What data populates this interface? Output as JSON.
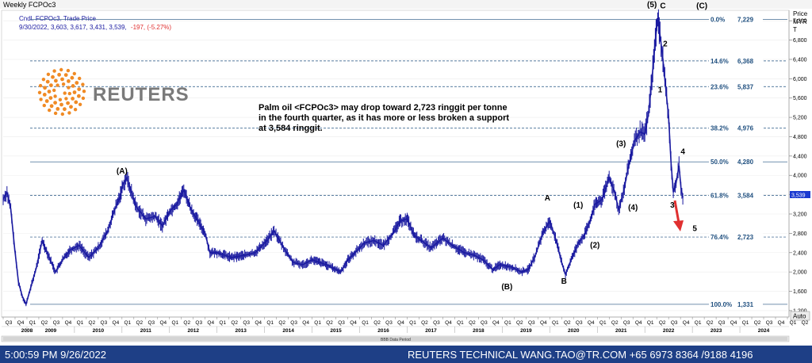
{
  "window": {
    "title": "Weekly FCPOc3",
    "series_label": "Cndl, FCPOc3, Trade Price",
    "ohlc_text": "9/30/2022, 3,603, 3,617, 3,431, 3,539,",
    "change_text": "-197, (-5.27%)"
  },
  "axis": {
    "unit_line1": "Price",
    "unit_line2": "MYR",
    "unit_line3": "T",
    "auto_label": "Auto",
    "data_period_label": "BBB Data Period",
    "last_price_tag": "3,539"
  },
  "logo": {
    "text": "REUTERS"
  },
  "annotation": {
    "lines": [
      "Palm oil <FCPOc3> may drop toward 2,723 ringgit per tonne",
      " in the fourth quarter, as it has more or less broken a support",
      "at 3,584 ringgit."
    ]
  },
  "footer": {
    "timestamp": "5:00:59 PM 9/26/2022",
    "info": "REUTERS TECHNICAL  WANG.TAO@TR.COM  +65 6973 8364 /9188 4196"
  },
  "colors": {
    "candle": "#1a1aa0",
    "fib_line": "#1f4f7f",
    "accent_red": "#e03030",
    "footer_bg": "#1e3f86",
    "last_tag": "#1a3ad0"
  },
  "chart_data": {
    "type": "candlestick",
    "title": "Weekly FCPOc3",
    "ylabel": "Price MYR T",
    "ylim": [
      1100,
      7400
    ],
    "y_ticks": [
      1200,
      1600,
      2000,
      2400,
      2800,
      3200,
      3600,
      4000,
      4400,
      4800,
      5200,
      5600,
      6000,
      6400,
      6800,
      7200
    ],
    "y_tick_labels": [
      "1,200",
      "1,600",
      "2,000",
      "2,400",
      "2,800",
      "3,200",
      "3,600",
      "4,000",
      "4,400",
      "4,800",
      "5,200",
      "5,600",
      "6,000",
      "6,400",
      "6,800",
      "7,200"
    ],
    "x_range": [
      2008.5,
      2025.0
    ],
    "quarter_labels": [
      "Q3",
      "Q4",
      "Q1",
      "Q2",
      "Q3",
      "Q4",
      "Q1",
      "Q2",
      "Q3",
      "Q4",
      "Q1",
      "Q2",
      "Q3",
      "Q4",
      "Q1",
      "Q2",
      "Q3",
      "Q4",
      "Q1",
      "Q2",
      "Q3",
      "Q4",
      "Q1",
      "Q2",
      "Q3",
      "Q4",
      "Q1",
      "Q2",
      "Q3",
      "Q4",
      "Q1",
      "Q2",
      "Q3",
      "Q4",
      "Q1",
      "Q2",
      "Q3",
      "Q4",
      "Q1",
      "Q2",
      "Q3",
      "Q4",
      "Q1",
      "Q2",
      "Q3",
      "Q4",
      "Q1",
      "Q2",
      "Q3",
      "Q4",
      "Q1",
      "Q2",
      "Q3",
      "Q4",
      "Q1",
      "Q2",
      "Q3",
      "Q4",
      "Q1",
      "Q2",
      "Q3",
      "Q4",
      "Q1",
      "Q2",
      "Q3",
      "Q4",
      "Q1",
      "Q2"
    ],
    "years": [
      "2008",
      "2009",
      "2010",
      "2011",
      "2012",
      "2013",
      "2014",
      "2015",
      "2016",
      "2017",
      "2018",
      "2019",
      "2020",
      "2021",
      "2022",
      "2023",
      "2024"
    ],
    "fib_levels": [
      {
        "label": "0.0%",
        "value": 7229,
        "value_label": "7,229"
      },
      {
        "label": "14.6%",
        "value": 6368,
        "value_label": "6,368"
      },
      {
        "label": "23.6%",
        "value": 5837,
        "value_label": "5,837"
      },
      {
        "label": "38.2%",
        "value": 4976,
        "value_label": "4,976"
      },
      {
        "label": "50.0%",
        "value": 4280,
        "value_label": "4,280"
      },
      {
        "label": "61.8%",
        "value": 3584,
        "value_label": "3,584"
      },
      {
        "label": "76.4%",
        "value": 2723,
        "value_label": "2,723"
      },
      {
        "label": "100.0%",
        "value": 1331,
        "value_label": "1,331"
      }
    ],
    "series": [
      {
        "name": "FCPOc3",
        "points": [
          [
            2008.5,
            3500
          ],
          [
            2008.58,
            3650
          ],
          [
            2008.66,
            3300
          ],
          [
            2008.74,
            2500
          ],
          [
            2008.82,
            1800
          ],
          [
            2008.9,
            1500
          ],
          [
            2008.98,
            1331
          ],
          [
            2009.1,
            1750
          ],
          [
            2009.2,
            2100
          ],
          [
            2009.32,
            2650
          ],
          [
            2009.45,
            2350
          ],
          [
            2009.6,
            2000
          ],
          [
            2009.75,
            2250
          ],
          [
            2009.9,
            2450
          ],
          [
            2010.1,
            2550
          ],
          [
            2010.3,
            2300
          ],
          [
            2010.5,
            2500
          ],
          [
            2010.7,
            2850
          ],
          [
            2010.85,
            3300
          ],
          [
            2010.95,
            3550
          ],
          [
            2011.02,
            3800
          ],
          [
            2011.1,
            3950
          ],
          [
            2011.3,
            3350
          ],
          [
            2011.5,
            3100
          ],
          [
            2011.7,
            3150
          ],
          [
            2011.85,
            2950
          ],
          [
            2012.0,
            3250
          ],
          [
            2012.15,
            3400
          ],
          [
            2012.3,
            3700
          ],
          [
            2012.45,
            3300
          ],
          [
            2012.6,
            3050
          ],
          [
            2012.75,
            2800
          ],
          [
            2012.85,
            2400
          ],
          [
            2013.0,
            2400
          ],
          [
            2013.3,
            2300
          ],
          [
            2013.6,
            2350
          ],
          [
            2013.8,
            2400
          ],
          [
            2014.05,
            2650
          ],
          [
            2014.2,
            2850
          ],
          [
            2014.4,
            2500
          ],
          [
            2014.6,
            2200
          ],
          [
            2014.8,
            2150
          ],
          [
            2015.0,
            2250
          ],
          [
            2015.3,
            2150
          ],
          [
            2015.6,
            2000
          ],
          [
            2015.75,
            2250
          ],
          [
            2015.9,
            2400
          ],
          [
            2016.1,
            2600
          ],
          [
            2016.3,
            2650
          ],
          [
            2016.5,
            2550
          ],
          [
            2016.7,
            2800
          ],
          [
            2016.85,
            3050
          ],
          [
            2017.0,
            3100
          ],
          [
            2017.15,
            2750
          ],
          [
            2017.3,
            2650
          ],
          [
            2017.5,
            2500
          ],
          [
            2017.75,
            2700
          ],
          [
            2017.95,
            2550
          ],
          [
            2018.2,
            2400
          ],
          [
            2018.4,
            2350
          ],
          [
            2018.6,
            2250
          ],
          [
            2018.8,
            2050
          ],
          [
            2018.95,
            2150
          ],
          [
            2019.2,
            2100
          ],
          [
            2019.4,
            2000
          ],
          [
            2019.55,
            2050
          ],
          [
            2019.7,
            2350
          ],
          [
            2019.85,
            2800
          ],
          [
            2020.0,
            3050
          ],
          [
            2020.12,
            2700
          ],
          [
            2020.25,
            2200
          ],
          [
            2020.33,
            1950
          ],
          [
            2020.45,
            2250
          ],
          [
            2020.6,
            2600
          ],
          [
            2020.72,
            2750
          ],
          [
            2020.85,
            3050
          ],
          [
            2020.95,
            3400
          ],
          [
            2021.1,
            3500
          ],
          [
            2021.25,
            3950
          ],
          [
            2021.35,
            3700
          ],
          [
            2021.45,
            3300
          ],
          [
            2021.55,
            3650
          ],
          [
            2021.65,
            4150
          ],
          [
            2021.78,
            4700
          ],
          [
            2021.9,
            4900
          ],
          [
            2022.0,
            4850
          ],
          [
            2022.08,
            5300
          ],
          [
            2022.15,
            6000
          ],
          [
            2022.22,
            6800
          ],
          [
            2022.27,
            7229
          ],
          [
            2022.32,
            6900
          ],
          [
            2022.38,
            6400
          ],
          [
            2022.44,
            5800
          ],
          [
            2022.5,
            5200
          ],
          [
            2022.55,
            4300
          ],
          [
            2022.6,
            3650
          ],
          [
            2022.66,
            3850
          ],
          [
            2022.72,
            4200
          ],
          [
            2022.76,
            3750
          ],
          [
            2022.8,
            3539
          ]
        ]
      }
    ],
    "wave_labels": [
      {
        "text": "(A)",
        "x": 2011.0,
        "y": 4040
      },
      {
        "text": "(B)",
        "x": 2019.1,
        "y": 1640
      },
      {
        "text": "A",
        "x": 2019.95,
        "y": 3480
      },
      {
        "text": "B",
        "x": 2020.3,
        "y": 1760
      },
      {
        "text": "(1)",
        "x": 2020.6,
        "y": 3330
      },
      {
        "text": "(2)",
        "x": 2020.95,
        "y": 2500
      },
      {
        "text": "(3)",
        "x": 2021.5,
        "y": 4600
      },
      {
        "text": "(4)",
        "x": 2021.75,
        "y": 3280
      },
      {
        "text": "(5)",
        "x": 2022.15,
        "y": 7480
      },
      {
        "text": "C",
        "x": 2022.38,
        "y": 7460
      },
      {
        "text": "(C)",
        "x": 2023.2,
        "y": 7460
      },
      {
        "text": "2",
        "x": 2022.43,
        "y": 6670
      },
      {
        "text": "1",
        "x": 2022.32,
        "y": 5720
      },
      {
        "text": "4",
        "x": 2022.8,
        "y": 4440
      },
      {
        "text": "3",
        "x": 2022.58,
        "y": 3330
      },
      {
        "text": "5",
        "x": 2023.05,
        "y": 2850
      }
    ],
    "support": {
      "value": 3584,
      "value_label": "3,584"
    },
    "target": {
      "value": 2723,
      "value_label": "2,723"
    },
    "last_price": {
      "value": 3539,
      "label": "3,539"
    }
  }
}
